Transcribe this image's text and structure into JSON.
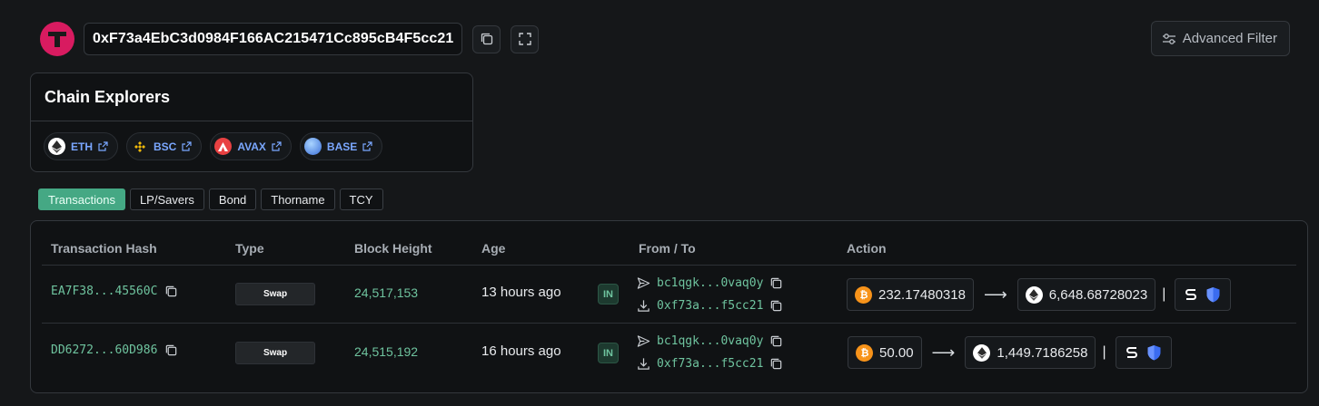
{
  "header": {
    "address": "0xF73a4EbC3d0984F166AC215471Cc895cB4F5cc21",
    "advanced_filter_label": "Advanced Filter"
  },
  "explorers": {
    "title": "Chain Explorers",
    "chains": [
      {
        "label": "ETH",
        "icon": "ethereum-icon",
        "color": "#627eea"
      },
      {
        "label": "BSC",
        "icon": "bnb-icon",
        "color": "#f0b90b"
      },
      {
        "label": "AVAX",
        "icon": "avalanche-icon",
        "color": "#e84142"
      },
      {
        "label": "BASE",
        "icon": "base-icon",
        "color": "#4a8cff"
      }
    ]
  },
  "tabs": [
    {
      "label": "Transactions",
      "active": true
    },
    {
      "label": "LP/Savers",
      "active": false
    },
    {
      "label": "Bond",
      "active": false
    },
    {
      "label": "Thorname",
      "active": false
    },
    {
      "label": "TCY",
      "active": false
    }
  ],
  "table": {
    "columns": [
      "Transaction Hash",
      "Type",
      "Block Height",
      "Age",
      "From / To",
      "Action"
    ],
    "rows": [
      {
        "hash": "EA7F38...45560C",
        "type": "Swap",
        "block_height": "24,517,153",
        "age": "13 hours ago",
        "direction": "IN",
        "from": "bc1qgk...0vaq0y",
        "to": "0xf73a...f5cc21",
        "in_amount": "232.17480318",
        "in_asset_icon": "bitcoin-icon",
        "out_amount": "6,648.68728023",
        "out_asset_icon": "ethereum-icon"
      },
      {
        "hash": "DD6272...60D986",
        "type": "Swap",
        "block_height": "24,515,192",
        "age": "16 hours ago",
        "direction": "IN",
        "from": "bc1qgk...0vaq0y",
        "to": "0xf73a...f5cc21",
        "in_amount": "50.00",
        "in_asset_icon": "bitcoin-icon",
        "out_amount": "1,449.7186258",
        "out_asset_icon": "ethereum-icon"
      }
    ],
    "action_separator": "|"
  },
  "colors": {
    "accent_green": "#45a884",
    "link_blue": "#7aa7ff",
    "bitcoin_orange": "#f7931a"
  }
}
